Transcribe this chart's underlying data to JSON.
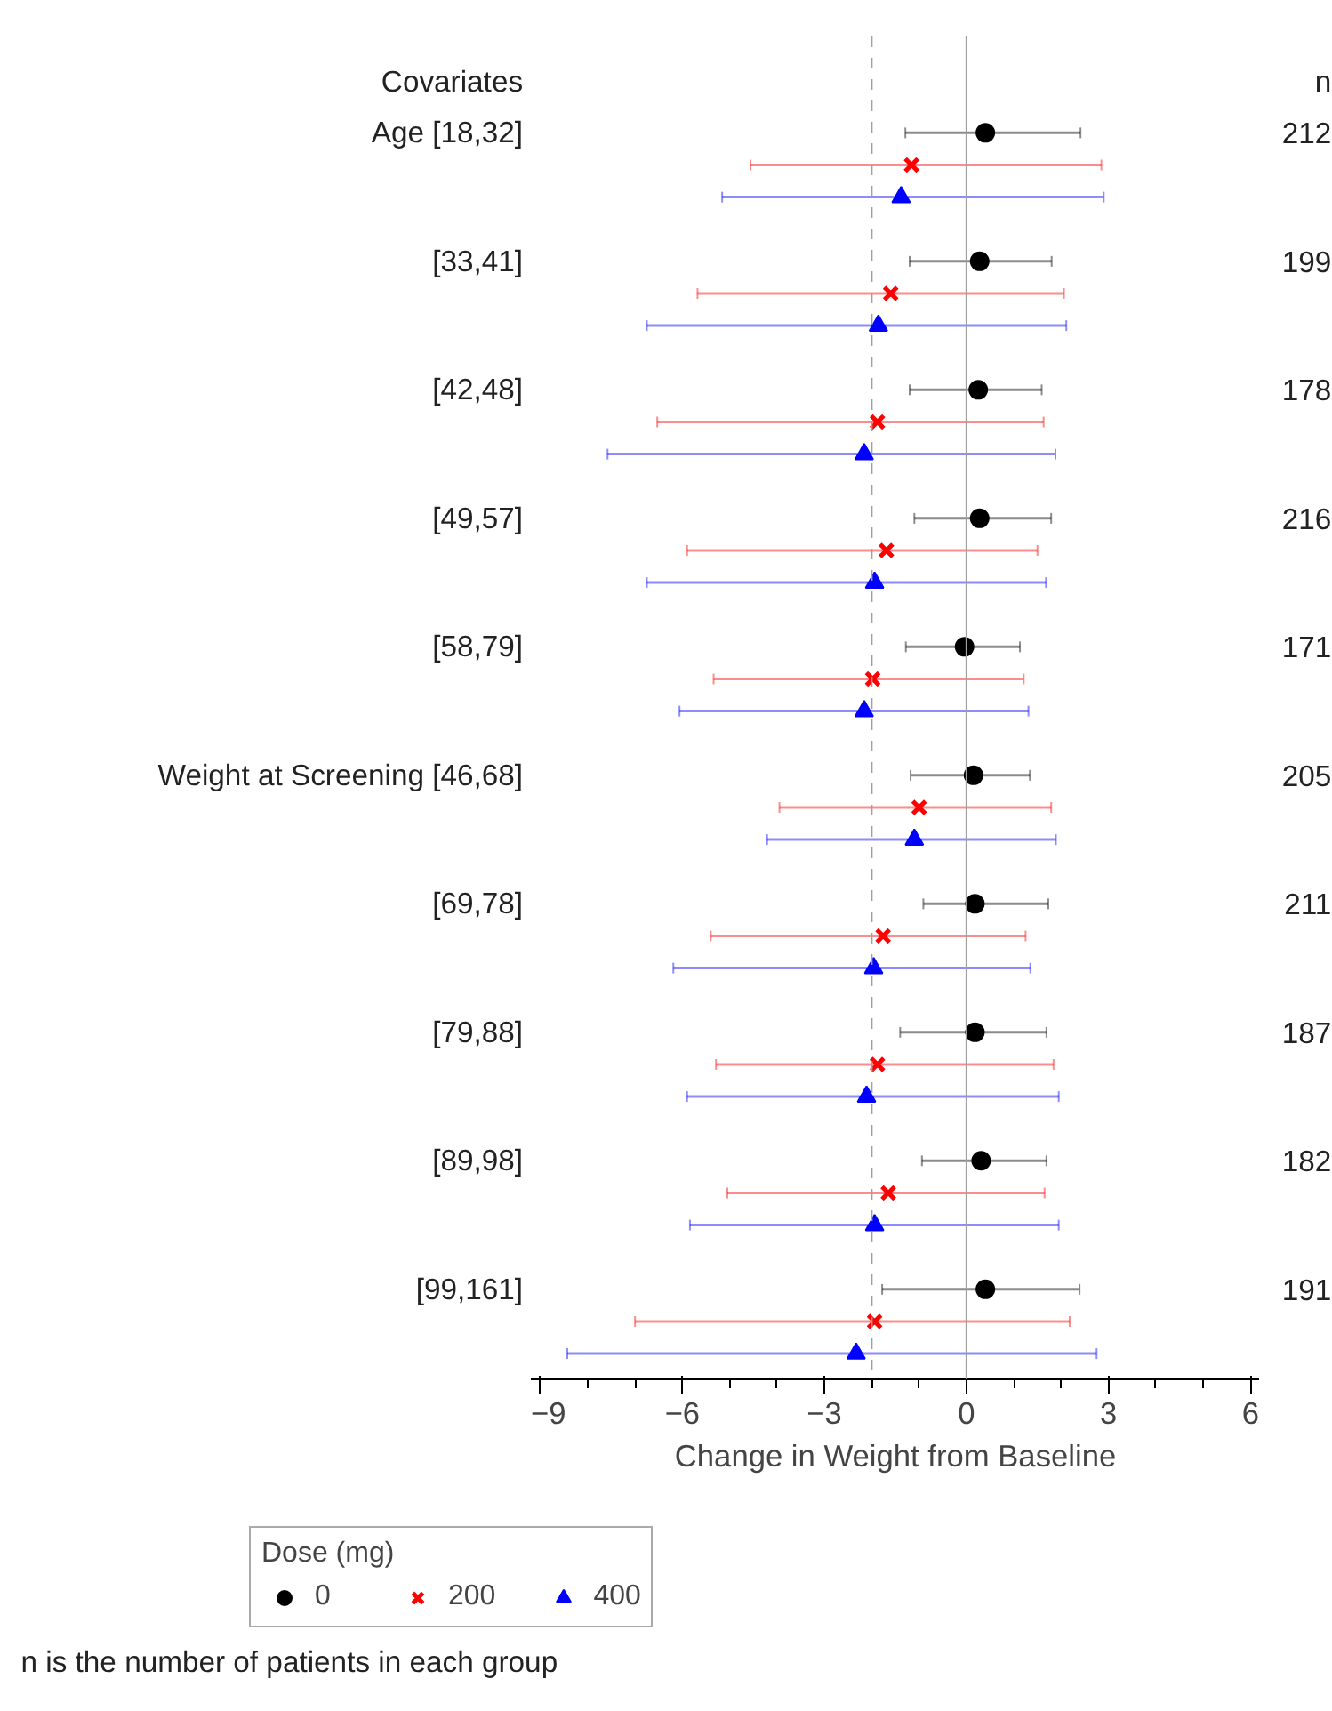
{
  "chart_data": {
    "type": "scatter",
    "orientation": "horizontal",
    "ylabel": "Covariates",
    "xlabel": "Change in Weight from Baseline",
    "legend_title": "Dose (mg)",
    "legend": "bottom",
    "grid": false,
    "categories": [
      "Age [18,32]",
      "[33,41]",
      "[42,48]",
      "[49,57]",
      "[58,79]",
      "Weight at Screening [46,68]",
      "[69,78]",
      "[79,88]",
      "[89,98]",
      "[99,161]"
    ],
    "series": [
      {
        "name": "0",
        "color": "#000000",
        "marker": "circle",
        "values": [
          0.4,
          0.28,
          0.25,
          0.28,
          -0.04,
          0.15,
          0.18,
          0.18,
          0.31,
          0.4
        ],
        "errors": [
          [
            -1.29,
            2.41
          ],
          [
            -1.2,
            1.8
          ],
          [
            -1.2,
            1.59
          ],
          [
            -1.1,
            1.79
          ],
          [
            -1.28,
            1.13
          ],
          [
            -1.18,
            1.34
          ],
          [
            -0.91,
            1.73
          ],
          [
            -1.4,
            1.69
          ],
          [
            -0.94,
            1.69
          ],
          [
            -1.78,
            2.39
          ]
        ]
      },
      {
        "name": "200",
        "color": "#ff0000",
        "marker": "cross",
        "values": [
          -1.16,
          -1.6,
          -1.88,
          -1.69,
          -1.98,
          -1.0,
          -1.76,
          -1.88,
          -1.65,
          -1.94
        ],
        "errors": [
          [
            -4.56,
            2.85
          ],
          [
            -5.68,
            2.06
          ],
          [
            -6.53,
            1.63
          ],
          [
            -5.9,
            1.5
          ],
          [
            -5.34,
            1.21
          ],
          [
            -3.95,
            1.79
          ],
          [
            -5.4,
            1.25
          ],
          [
            -5.29,
            1.84
          ],
          [
            -5.05,
            1.65
          ],
          [
            -7.0,
            2.18
          ]
        ]
      },
      {
        "name": "400",
        "color": "#0000ff",
        "marker": "triangle",
        "values": [
          -1.38,
          -1.86,
          -2.16,
          -1.94,
          -2.16,
          -1.1,
          -1.96,
          -2.11,
          -1.94,
          -2.33
        ],
        "errors": [
          [
            -5.16,
            2.9
          ],
          [
            -6.75,
            2.11
          ],
          [
            -7.58,
            1.88
          ],
          [
            -6.75,
            1.68
          ],
          [
            -6.06,
            1.31
          ],
          [
            -4.21,
            1.89
          ],
          [
            -6.19,
            1.35
          ],
          [
            -5.9,
            1.95
          ],
          [
            -5.84,
            1.95
          ],
          [
            -8.43,
            2.75
          ]
        ]
      }
    ],
    "xlim": [
      -9.2,
      6.2
    ],
    "xticks": [
      {
        "value": -9,
        "label": "−9"
      },
      {
        "value": -8,
        "label": null
      },
      {
        "value": -7,
        "label": null
      },
      {
        "value": -6,
        "label": "−6"
      },
      {
        "value": -5,
        "label": null
      },
      {
        "value": -4,
        "label": null
      },
      {
        "value": -3,
        "label": "−3"
      },
      {
        "value": -2,
        "label": null
      },
      {
        "value": -1,
        "label": null
      },
      0,
      {
        "value": 1,
        "label": null
      },
      {
        "value": 2,
        "label": null
      },
      3,
      {
        "value": 4,
        "label": null
      },
      {
        "value": 5,
        "label": null
      },
      6
    ],
    "ref_lines": [
      {
        "axis": "x",
        "value": 0,
        "color": "#a0a0a0",
        "line_style": "solid"
      },
      {
        "axis": "x",
        "value": -2,
        "color": "#a0a0a0",
        "line_style": "dashed"
      }
    ],
    "annotations": [
      "n",
      "212",
      "199",
      "178",
      "216",
      "171",
      "205",
      "211",
      "187",
      "182",
      "191",
      "n is the number of patients in each group"
    ]
  }
}
